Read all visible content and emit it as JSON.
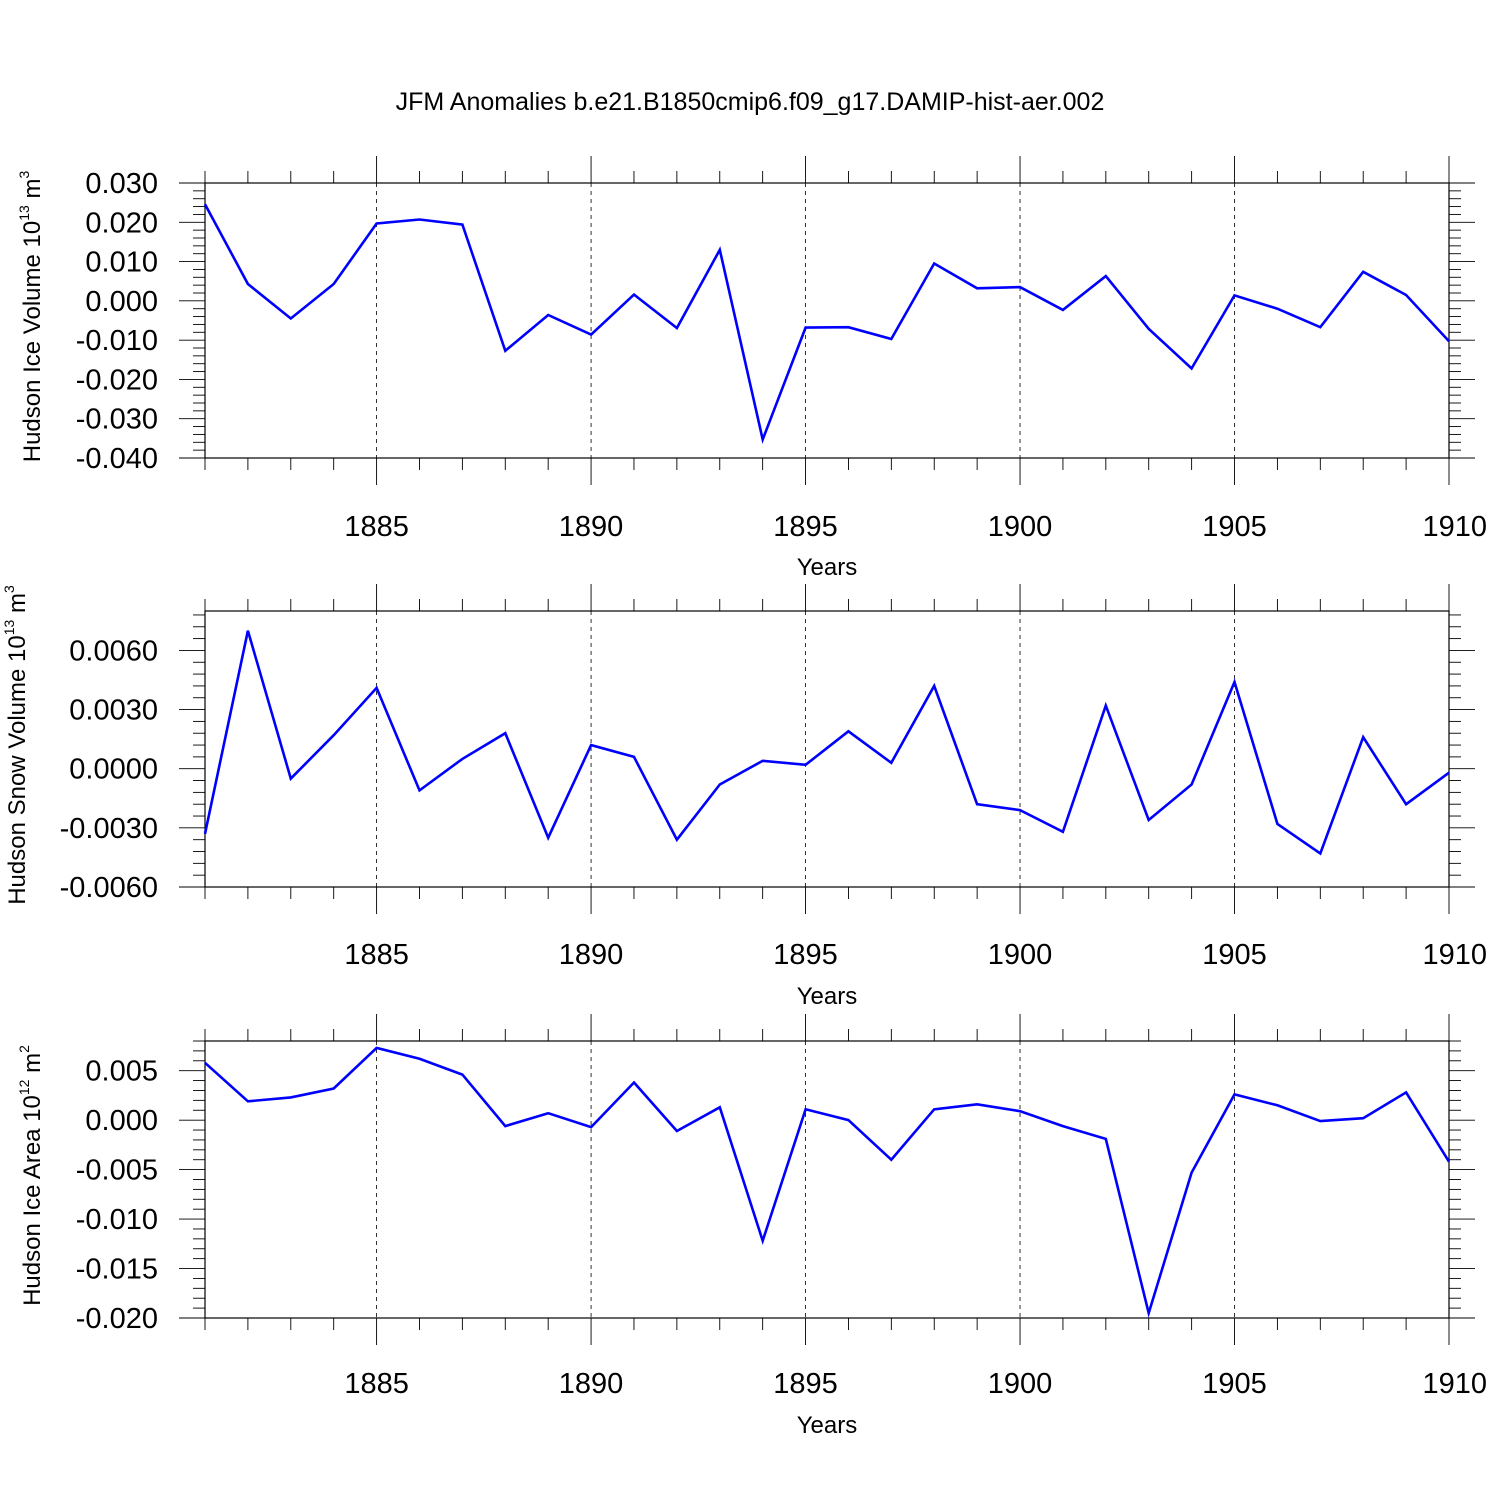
{
  "title": "JFM Anomalies b.e21.B1850cmip6.f09_g17.DAMIP-hist-aer.002",
  "chart_data": [
    {
      "type": "line",
      "ylabel": {
        "main": "Hudson Ice Volume 10",
        "exp": "13",
        "unit": " m",
        "unit_exp": "3"
      },
      "xlabel": "Years",
      "xlim": [
        1881,
        1910
      ],
      "xticks": [
        1885,
        1890,
        1895,
        1900,
        1905,
        1910
      ],
      "ylim": [
        -0.04,
        0.03
      ],
      "yticks": [
        "0.030",
        "0.020",
        "0.010",
        "0.000",
        "-0.010",
        "-0.020",
        "-0.030",
        "-0.040"
      ],
      "ytick_values": [
        0.03,
        0.02,
        0.01,
        0.0,
        -0.01,
        -0.02,
        -0.03,
        -0.04
      ],
      "grid": "dashed vertical at major x ticks",
      "color": "#0000ff",
      "x": [
        1881,
        1882,
        1883,
        1884,
        1885,
        1886,
        1887,
        1888,
        1889,
        1890,
        1891,
        1892,
        1893,
        1894,
        1895,
        1896,
        1897,
        1898,
        1899,
        1900,
        1901,
        1902,
        1903,
        1904,
        1905,
        1906,
        1907,
        1908,
        1909,
        1910
      ],
      "values": [
        0.0246,
        0.0043,
        -0.0045,
        0.0043,
        0.0197,
        0.0207,
        0.0194,
        -0.0127,
        -0.0036,
        -0.0086,
        0.0016,
        -0.0069,
        0.013,
        -0.0353,
        -0.0068,
        -0.0067,
        -0.0097,
        0.0095,
        0.0032,
        0.0035,
        -0.0023,
        0.0063,
        -0.0071,
        -0.0172,
        0.0014,
        -0.002,
        -0.0067,
        0.0074,
        0.0015,
        -0.0103
      ]
    },
    {
      "type": "line",
      "ylabel": {
        "main": "Hudson Snow Volume 10",
        "exp": "13",
        "unit": " m",
        "unit_exp": "3"
      },
      "xlabel": "Years",
      "xlim": [
        1881,
        1910
      ],
      "xticks": [
        1885,
        1890,
        1895,
        1900,
        1905,
        1910
      ],
      "ylim": [
        -0.006,
        0.008
      ],
      "yticks": [
        "0.0060",
        "0.0030",
        "0.0000",
        "-0.0030",
        "-0.0060"
      ],
      "ytick_values": [
        0.006,
        0.003,
        0.0,
        -0.003,
        -0.006
      ],
      "grid": "dashed vertical at major x ticks",
      "color": "#0000ff",
      "x": [
        1881,
        1882,
        1883,
        1884,
        1885,
        1886,
        1887,
        1888,
        1889,
        1890,
        1891,
        1892,
        1893,
        1894,
        1895,
        1896,
        1897,
        1898,
        1899,
        1900,
        1901,
        1902,
        1903,
        1904,
        1905,
        1906,
        1907,
        1908,
        1909,
        1910
      ],
      "values": [
        -0.0033,
        0.007,
        -0.0005,
        0.0017,
        0.0041,
        -0.0011,
        0.0005,
        0.0018,
        -0.0035,
        0.0012,
        0.0006,
        -0.0036,
        -0.0008,
        0.0004,
        0.0002,
        0.0019,
        0.0003,
        0.0042,
        -0.0018,
        -0.0021,
        -0.0032,
        0.0032,
        -0.0026,
        -0.0008,
        0.0044,
        -0.0028,
        -0.0043,
        0.0016,
        -0.0018,
        -0.0002
      ]
    },
    {
      "type": "line",
      "ylabel": {
        "main": "Hudson Ice Area 10",
        "exp": "12",
        "unit": " m",
        "unit_exp": "2"
      },
      "xlabel": "Years",
      "xlim": [
        1881,
        1910
      ],
      "xticks": [
        1885,
        1890,
        1895,
        1900,
        1905,
        1910
      ],
      "ylim": [
        -0.02,
        0.008
      ],
      "yticks": [
        "0.005",
        "0.000",
        "-0.005",
        "-0.010",
        "-0.015",
        "-0.020"
      ],
      "ytick_values": [
        0.005,
        0.0,
        -0.005,
        -0.01,
        -0.015,
        -0.02
      ],
      "grid": "dashed vertical at major x ticks",
      "color": "#0000ff",
      "x": [
        1881,
        1882,
        1883,
        1884,
        1885,
        1886,
        1887,
        1888,
        1889,
        1890,
        1891,
        1892,
        1893,
        1894,
        1895,
        1896,
        1897,
        1898,
        1899,
        1900,
        1901,
        1902,
        1903,
        1904,
        1905,
        1906,
        1907,
        1908,
        1909,
        1910
      ],
      "values": [
        0.0058,
        0.0019,
        0.0023,
        0.0032,
        0.0073,
        0.0062,
        0.0046,
        -0.0006,
        0.0007,
        -0.0007,
        0.0038,
        -0.0011,
        0.0013,
        -0.0122,
        0.0011,
        0.0,
        -0.004,
        0.0011,
        0.0016,
        0.0009,
        -0.0006,
        -0.0019,
        -0.0195,
        -0.0053,
        0.0026,
        0.0015,
        -0.0001,
        0.0002,
        0.0028,
        -0.0042
      ]
    }
  ]
}
